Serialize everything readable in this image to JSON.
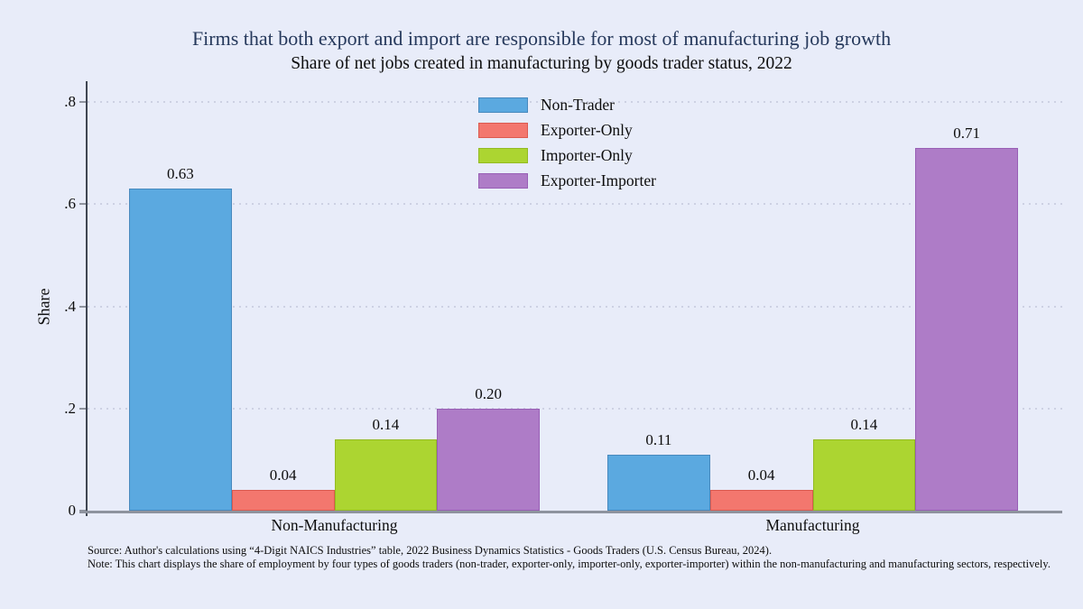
{
  "figure": {
    "title": "Firms that both export and import are responsible for most of manufacturing job growth",
    "subtitle": "Share of net jobs created in manufacturing by goods trader status, 2022",
    "source_note": "Source: Author's calculations using “4-Digit NAICS Industries” table, 2022 Business Dynamics Statistics - Goods Traders (U.S. Census Bureau, 2024).",
    "methodology_note": "Note: This chart displays the share of employment by four types of goods traders (non-trader, exporter-only, importer-only, exporter-importer) within the non-manufacturing and manufacturing sectors, respectively."
  },
  "chart_data": {
    "type": "bar",
    "categories": [
      "Non-Manufacturing",
      "Manufacturing"
    ],
    "series": [
      {
        "name": "Non-Trader",
        "color": "#5BA9E0",
        "border_color": "#4889BD",
        "values": [
          0.63,
          0.11
        ]
      },
      {
        "name": "Exporter-Only",
        "color": "#F3776E",
        "border_color": "#DB5A50",
        "values": [
          0.04,
          0.04
        ]
      },
      {
        "name": "Importer-Only",
        "color": "#ACD531",
        "border_color": "#93BB22",
        "values": [
          0.14,
          0.14
        ]
      },
      {
        "name": "Exporter-Importer",
        "color": "#AE7CC7",
        "border_color": "#985FB5",
        "values": [
          0.2,
          0.71
        ]
      }
    ],
    "title": "Firms that both export and import are responsible for most of manufacturing job growth",
    "subtitle": "Share of net jobs created in manufacturing by goods trader status, 2022",
    "xlabel": "",
    "ylabel": "Share",
    "yticks": [
      {
        "label": "0",
        "value": 0
      },
      {
        "label": ".2",
        "value": 0.2
      },
      {
        "label": ".4",
        "value": 0.4
      },
      {
        "label": ".6",
        "value": 0.6
      },
      {
        "label": ".8",
        "value": 0.8
      }
    ],
    "ylim": [
      0,
      0.84
    ],
    "grid": "horizontal-dotted",
    "legend_position": "inside-top-center",
    "value_label_decimals": 2
  },
  "colors": {
    "background": "#E8ECF9",
    "title_text": "#26395C",
    "body_text": "#0D0D0D",
    "y_axis_line": "#3F4652",
    "x_axis_line": "#8E939E",
    "gridline": "#CDD1E3"
  }
}
